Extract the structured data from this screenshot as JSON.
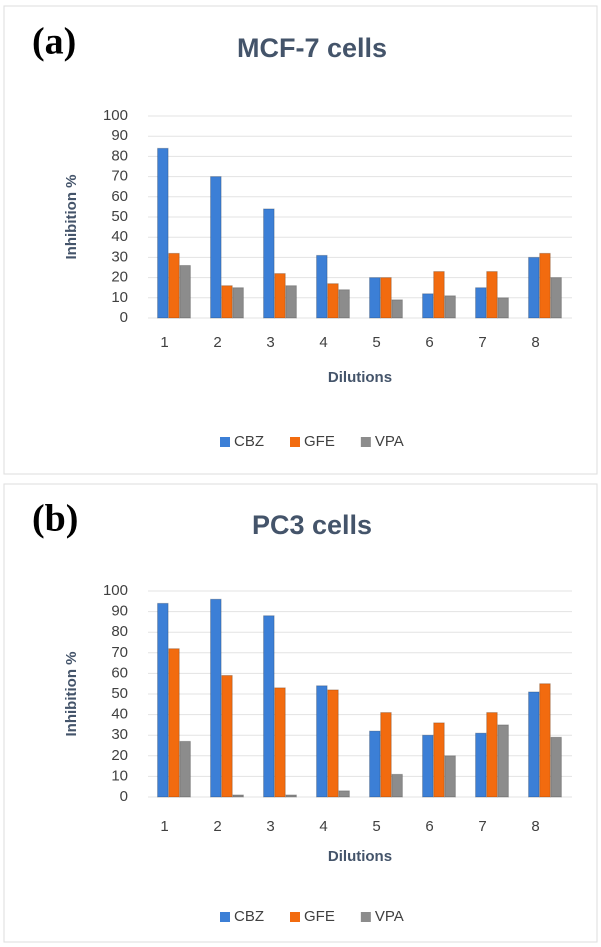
{
  "chart_data": [
    {
      "type": "bar",
      "panel_label": "(a)",
      "title": "MCF-7 cells",
      "x_label": "Dilutions",
      "y_label": "Inhibition %",
      "categories": [
        "1",
        "2",
        "3",
        "4",
        "5",
        "6",
        "7",
        "8"
      ],
      "series": [
        {
          "name": "CBZ",
          "color": "#3c7fd6",
          "values": [
            84,
            70,
            54,
            31,
            20,
            12,
            15,
            30
          ]
        },
        {
          "name": "GFE",
          "color": "#f26b0f",
          "values": [
            32,
            16,
            22,
            17,
            20,
            23,
            23,
            32
          ]
        },
        {
          "name": "VPA",
          "color": "#8c8c8c",
          "values": [
            26,
            15,
            16,
            14,
            9,
            11,
            10,
            20
          ]
        }
      ],
      "ylim": [
        0,
        100
      ],
      "yticks": [
        0,
        10,
        20,
        30,
        40,
        50,
        60,
        70,
        80,
        90,
        100
      ],
      "grid": true
    },
    {
      "type": "bar",
      "panel_label": "(b)",
      "title": "PC3 cells",
      "x_label": "Dilutions",
      "y_label": "Inhibition %",
      "categories": [
        "1",
        "2",
        "3",
        "4",
        "5",
        "6",
        "7",
        "8"
      ],
      "series": [
        {
          "name": "CBZ",
          "color": "#3c7fd6",
          "values": [
            94,
            96,
            88,
            54,
            32,
            30,
            31,
            51
          ]
        },
        {
          "name": "GFE",
          "color": "#f26b0f",
          "values": [
            72,
            59,
            53,
            52,
            41,
            36,
            41,
            55
          ]
        },
        {
          "name": "VPA",
          "color": "#8c8c8c",
          "values": [
            27,
            1,
            1,
            3,
            11,
            20,
            35,
            29
          ]
        }
      ],
      "ylim": [
        0,
        100
      ],
      "yticks": [
        0,
        10,
        20,
        30,
        40,
        50,
        60,
        70,
        80,
        90,
        100
      ],
      "grid": true
    }
  ]
}
